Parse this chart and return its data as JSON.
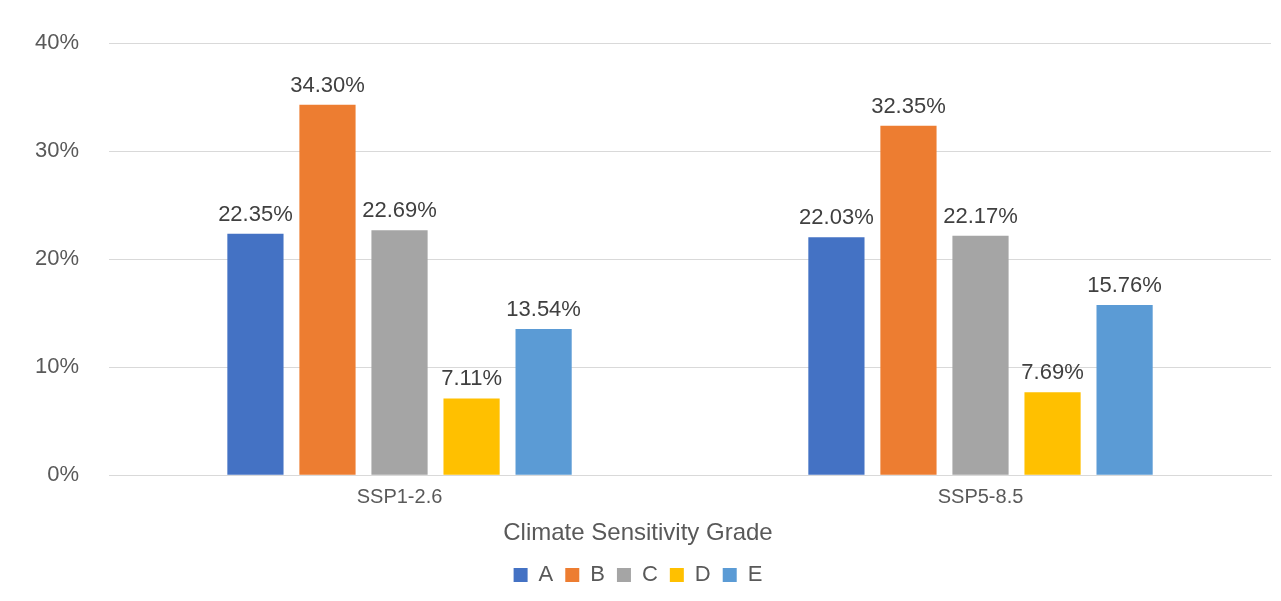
{
  "chart_data": {
    "type": "bar",
    "categories": [
      "SSP1-2.6",
      "SSP5-8.5"
    ],
    "legend_title": "Climate Sensitivity Grade",
    "series": [
      {
        "name": "A",
        "color": "#4472c4",
        "values": [
          22.35,
          22.03
        ],
        "value_labels": [
          "22.35%",
          "22.03%"
        ]
      },
      {
        "name": "B",
        "color": "#ed7d31",
        "values": [
          34.3,
          32.35
        ],
        "value_labels": [
          "34.30%",
          "32.35%"
        ]
      },
      {
        "name": "C",
        "color": "#a5a5a5",
        "values": [
          22.69,
          22.17
        ],
        "value_labels": [
          "22.69%",
          "22.17%"
        ]
      },
      {
        "name": "D",
        "color": "#ffc000",
        "values": [
          7.11,
          7.69
        ],
        "value_labels": [
          "7.11%",
          "7.69%"
        ]
      },
      {
        "name": "E",
        "color": "#5b9bd5",
        "values": [
          13.54,
          15.76
        ],
        "value_labels": [
          "13.54%",
          "15.76%"
        ]
      }
    ],
    "ylim": [
      0,
      40
    ],
    "yticks": [
      {
        "value": 0,
        "label": "0%"
      },
      {
        "value": 10,
        "label": "10%"
      },
      {
        "value": 20,
        "label": "20%"
      },
      {
        "value": 30,
        "label": "30%"
      },
      {
        "value": 40,
        "label": "40%"
      }
    ],
    "grid": "y",
    "legend": "bottom"
  }
}
